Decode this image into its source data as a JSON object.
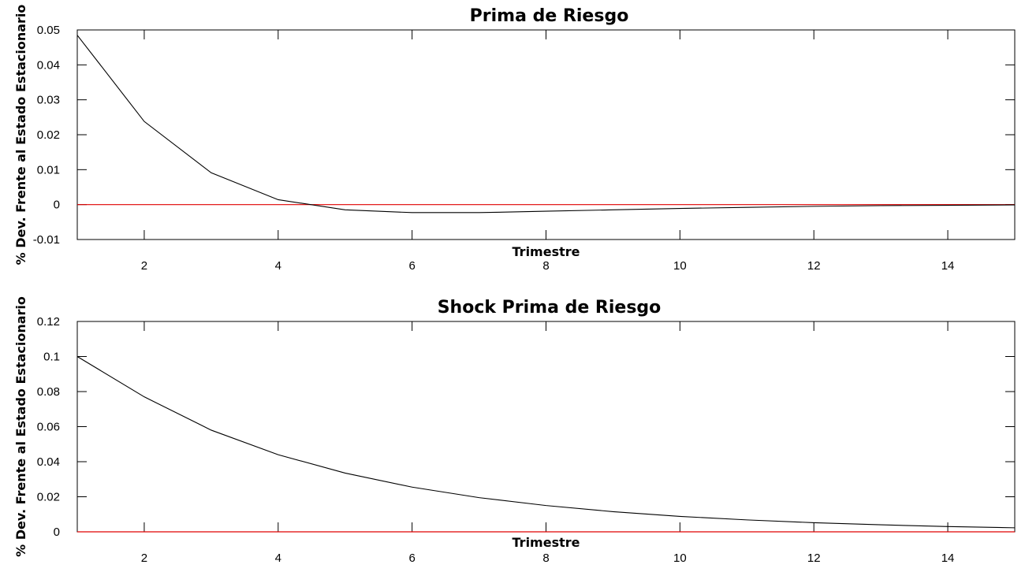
{
  "chart_data": [
    {
      "type": "line",
      "title": "Prima de Riesgo",
      "xlabel": "Trimestre",
      "ylabel": "% Dev. Frente al Estado Estacionario",
      "xlim": [
        1,
        15
      ],
      "ylim": [
        -0.01,
        0.05
      ],
      "x_ticks": [
        2,
        4,
        6,
        8,
        10,
        12,
        14
      ],
      "y_ticks": [
        -0.01,
        0,
        0.01,
        0.02,
        0.03,
        0.04,
        0.05
      ],
      "y_tick_labels": [
        "-0.01",
        "0",
        "0.01",
        "0.02",
        "0.03",
        "0.04",
        "0.05"
      ],
      "grid": false,
      "series": [
        {
          "x": [
            1,
            2,
            3,
            4,
            5,
            6,
            7,
            8,
            9,
            10,
            11,
            12,
            13,
            14,
            15
          ],
          "values": [
            0.0485,
            0.0238,
            0.0091,
            0.0014,
            -0.0015,
            -0.0023,
            -0.0023,
            -0.0019,
            -0.0015,
            -0.0011,
            -0.0008,
            -0.0005,
            -0.0003,
            -0.0002,
            -0.0001
          ],
          "color": "#000000"
        }
      ],
      "reference_line": {
        "y": 0,
        "color": "#e00000"
      }
    },
    {
      "type": "line",
      "title": "Shock Prima de Riesgo",
      "xlabel": "Trimestre",
      "ylabel": "% Dev. Frente al Estado Estacionario",
      "xlim": [
        1,
        15
      ],
      "ylim": [
        0,
        0.12
      ],
      "x_ticks": [
        2,
        4,
        6,
        8,
        10,
        12,
        14
      ],
      "y_ticks": [
        0,
        0.02,
        0.04,
        0.06,
        0.08,
        0.1,
        0.12
      ],
      "y_tick_labels": [
        "0",
        "0.02",
        "0.04",
        "0.06",
        "0.08",
        "0.1",
        "0.12"
      ],
      "grid": false,
      "series": [
        {
          "x": [
            1,
            2,
            3,
            4,
            5,
            6,
            7,
            8,
            9,
            10,
            11,
            12,
            13,
            14,
            15
          ],
          "values": [
            0.1,
            0.077,
            0.058,
            0.044,
            0.0335,
            0.0255,
            0.0195,
            0.015,
            0.0115,
            0.0088,
            0.0068,
            0.0052,
            0.004,
            0.003,
            0.0023
          ],
          "color": "#000000"
        }
      ],
      "reference_line": {
        "y": 0,
        "color": "#e00000"
      }
    }
  ]
}
